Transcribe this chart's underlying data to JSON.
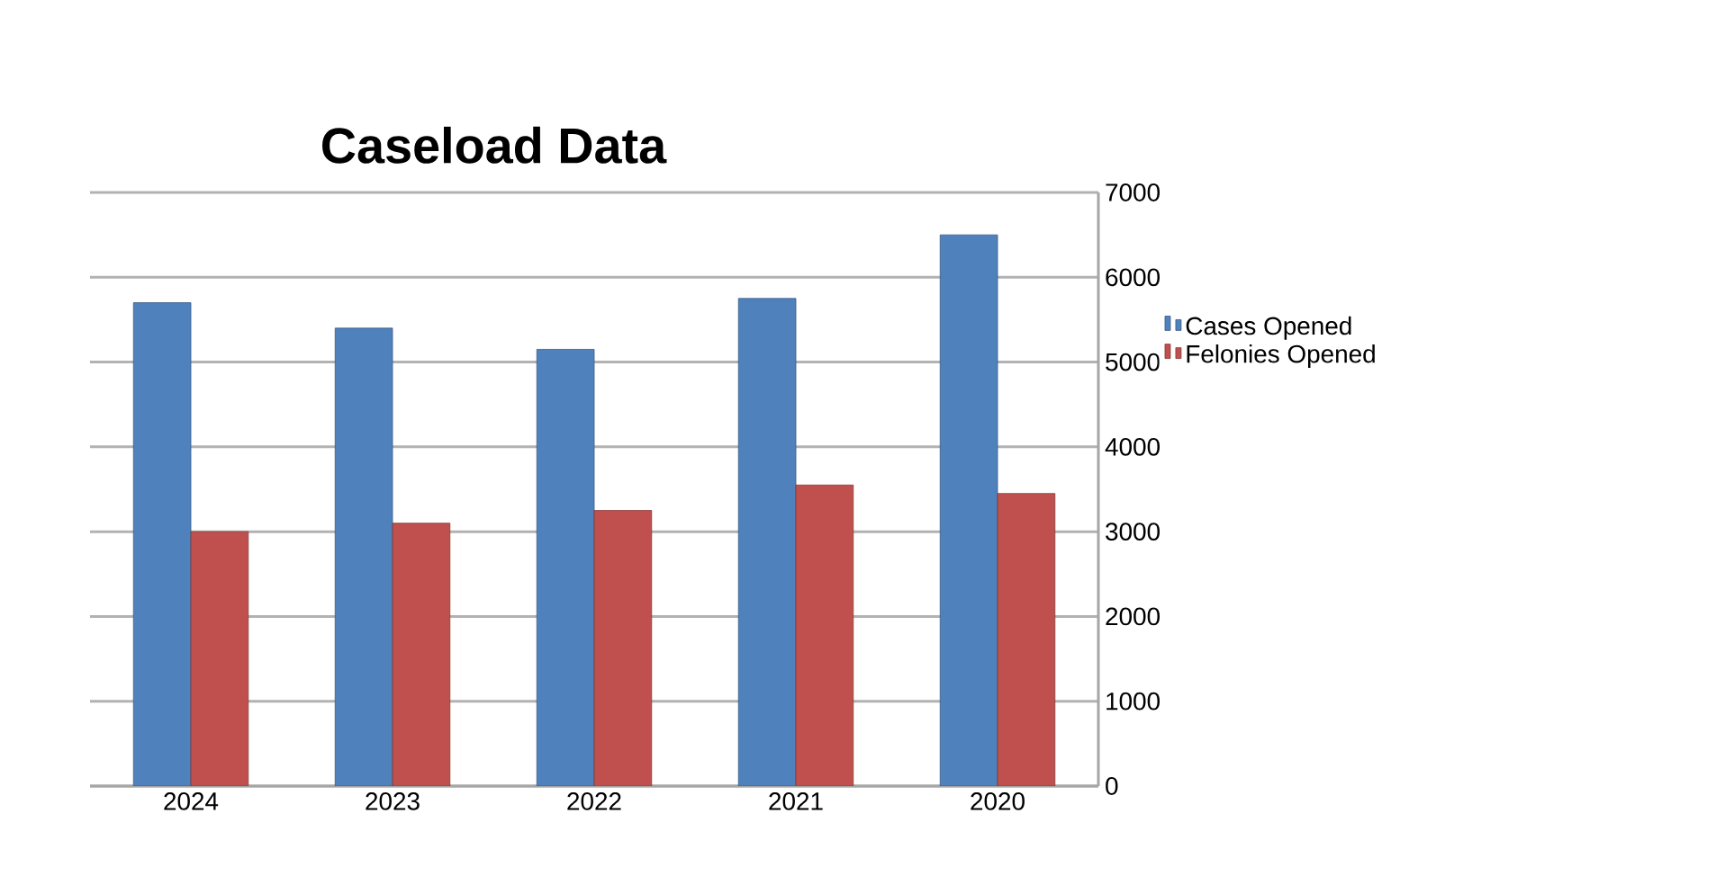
{
  "chart_data": {
    "type": "bar",
    "title": "Caseload Data",
    "categories": [
      "2024",
      "2023",
      "2022",
      "2021",
      "2020"
    ],
    "series": [
      {
        "name": "Cases Opened",
        "color": "#4f81bd",
        "values": [
          5700,
          5400,
          5150,
          5750,
          6500
        ]
      },
      {
        "name": "Felonies Opened",
        "color": "#c0504d",
        "values": [
          3000,
          3100,
          3250,
          3550,
          3450
        ]
      }
    ],
    "ylim": [
      0,
      7000
    ],
    "yticks": [
      0,
      1000,
      2000,
      3000,
      4000,
      5000,
      6000,
      7000
    ],
    "grid": "y",
    "legend": "right"
  }
}
